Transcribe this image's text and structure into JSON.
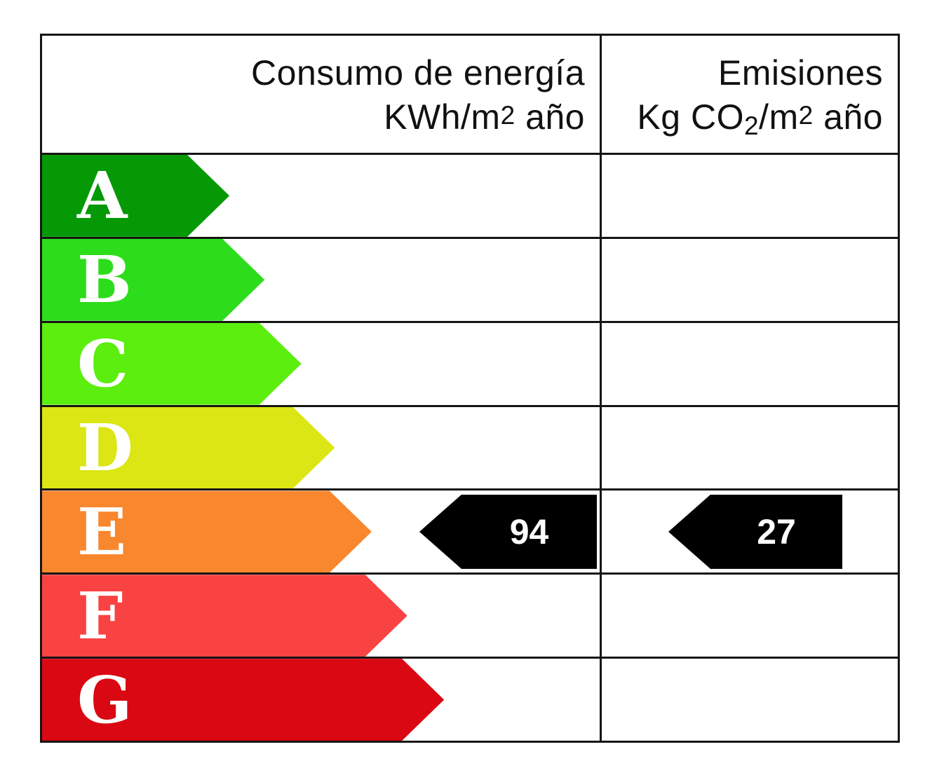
{
  "header": {
    "energy": {
      "line1": "Consumo de energía",
      "line2_base": "KWh/m",
      "line2_sup": "2",
      "line2_tail": " año"
    },
    "emissions": {
      "line1": "Emisiones",
      "line2_base": "Kg CO",
      "line2_sub": "2",
      "line2_mid": "/m",
      "line2_sup": "2",
      "line2_tail": " año"
    }
  },
  "chart_data": {
    "type": "bar",
    "chart_kind": "energy-efficiency-rating-scale",
    "columns": [
      {
        "header": "Consumo de energía KWh/m2 año"
      },
      {
        "header": "Emisiones Kg CO2/m2 año"
      }
    ],
    "categories": [
      "A",
      "B",
      "C",
      "D",
      "E",
      "F",
      "G"
    ],
    "bands": [
      {
        "letter": "A",
        "color": "#069906",
        "width_pct": 33.6
      },
      {
        "letter": "B",
        "color": "#2ddd1b",
        "width_pct": 39.9
      },
      {
        "letter": "C",
        "color": "#5bee0f",
        "width_pct": 46.5
      },
      {
        "letter": "D",
        "color": "#dbe614",
        "width_pct": 52.5
      },
      {
        "letter": "E",
        "color": "#f8872e",
        "width_pct": 59.1
      },
      {
        "letter": "F",
        "color": "#f94343",
        "width_pct": 65.5
      },
      {
        "letter": "G",
        "color": "#da0812",
        "width_pct": 72.1
      }
    ],
    "rating": "E",
    "values": {
      "consumption_kwh_m2_year": "94",
      "emissions_kg_co2_m2_year": "27"
    },
    "marker_color": "#000000"
  }
}
